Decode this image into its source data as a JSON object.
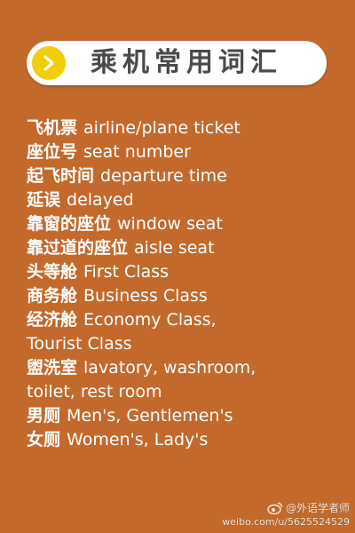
{
  "title": "乘机常用词汇",
  "items": [
    {
      "zh": "飞机票",
      "en": "airline/plane ticket"
    },
    {
      "zh": "座位号",
      "en": "seat number"
    },
    {
      "zh": "起飞时间",
      "en": "departure time"
    },
    {
      "zh": "延误",
      "en": "delayed"
    },
    {
      "zh": "靠窗的座位",
      "en": "window seat"
    },
    {
      "zh": "靠过道的座位",
      "en": "aisle seat"
    },
    {
      "zh": "头等舱",
      "en": "First Class"
    },
    {
      "zh": "商务舱",
      "en": "Business Class"
    },
    {
      "zh": "经济舱",
      "en": "Economy Class,"
    },
    {
      "zh": "",
      "en": "Tourist Class"
    },
    {
      "zh": "盥洗室",
      "en": "lavatory, washroom,"
    },
    {
      "zh": "",
      "en": "toilet, rest room"
    },
    {
      "zh": "男厕",
      "en": "Men's, Gentlemen's"
    },
    {
      "zh": "女厕",
      "en": "Women's, Lady's"
    }
  ],
  "watermark": {
    "handle": "@外语学者师",
    "url": "weibo.com/u/5625524529"
  },
  "colors": {
    "background": "#c4692c",
    "banner": "#ffffff",
    "badge": "#f3cd08",
    "text": "#ffffff"
  },
  "icons": {
    "badge": "chevron-right-icon",
    "watermark": "weibo-logo-icon"
  }
}
